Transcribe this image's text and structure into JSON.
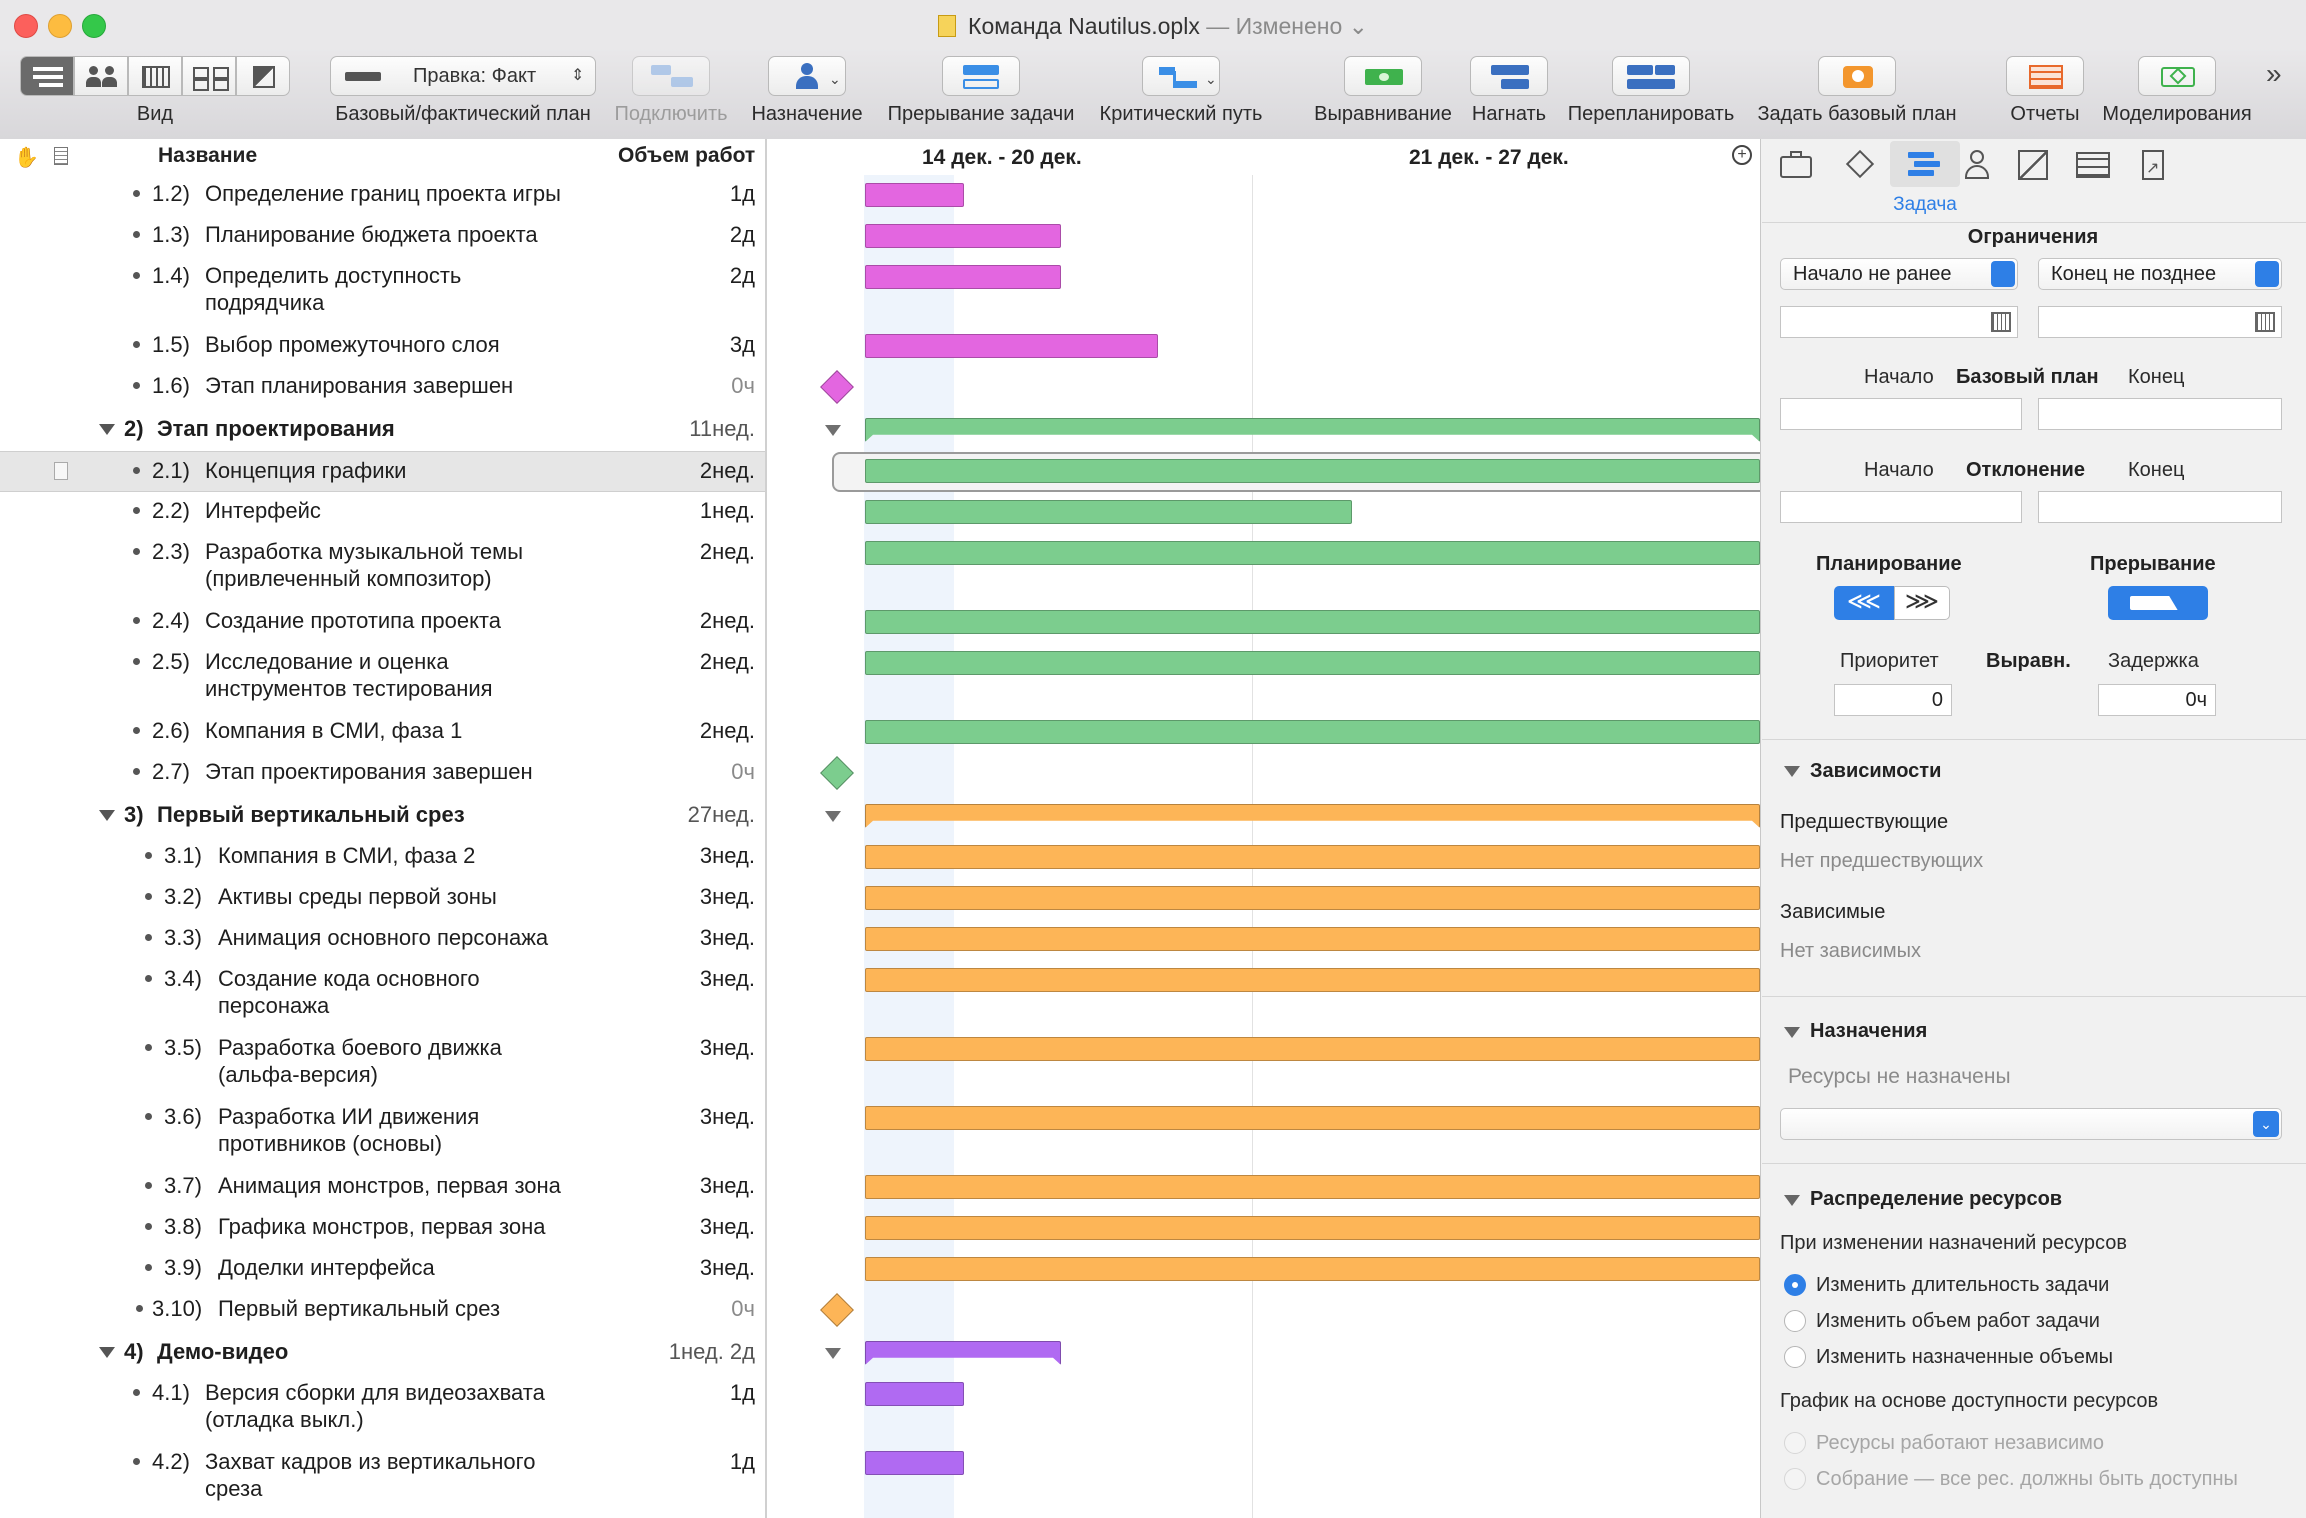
{
  "window": {
    "title": "Команда Nautilus.oplx",
    "status": "Изменено"
  },
  "toolbar": {
    "view_label": "Вид",
    "baseline_popup_value": "Правка: Факт",
    "baseline_label": "Базовый/фактический план",
    "connect_label": "Подключить",
    "assign_label": "Назначение",
    "split_label": "Прерывание задачи",
    "critical_label": "Критический путь",
    "level_label": "Выравнивание",
    "catchup_label": "Нагнать",
    "reschedule_label": "Перепланировать",
    "set_baseline_label": "Задать базовый план",
    "reports_label": "Отчеты",
    "simulation_label": "Моделирования",
    "overflow": "»"
  },
  "colors": {
    "group1": "#e366e0",
    "group2": "#7ccd8e",
    "group3": "#fdb557",
    "group4": "#b06af2",
    "accent": "#2e7fe6"
  },
  "outline": {
    "col_name": "Название",
    "col_effort": "Объем работ",
    "rows": [
      {
        "num": "1.2)",
        "name": "Определение границ проекта игры",
        "effort": "1д",
        "kind": "task"
      },
      {
        "num": "1.3)",
        "name": "Планирование бюджета проекта",
        "effort": "2д",
        "kind": "task"
      },
      {
        "num": "1.4)",
        "name": "Определить доступность",
        "name2": "подрядчика",
        "effort": "2д",
        "kind": "task"
      },
      {
        "num": "1.5)",
        "name": "Выбор промежуточного слоя",
        "effort": "3д",
        "kind": "task"
      },
      {
        "num": "1.6)",
        "name": "Этап планирования завершен",
        "effort": "0ч",
        "kind": "milestone"
      },
      {
        "num": "2)",
        "name": "Этап проектирования",
        "effort": "11нед.",
        "kind": "group"
      },
      {
        "num": "2.1)",
        "name": "Концепция графики",
        "effort": "2нед.",
        "kind": "task"
      },
      {
        "num": "2.2)",
        "name": "Интерфейс",
        "effort": "1нед.",
        "kind": "task"
      },
      {
        "num": "2.3)",
        "name": "Разработка музыкальной темы",
        "name2": "(привлеченный композитор)",
        "effort": "2нед.",
        "kind": "task"
      },
      {
        "num": "2.4)",
        "name": "Создание прототипа проекта",
        "effort": "2нед.",
        "kind": "task"
      },
      {
        "num": "2.5)",
        "name": "Исследование и оценка",
        "name2": "инструментов тестирования",
        "effort": "2нед.",
        "kind": "task"
      },
      {
        "num": "2.6)",
        "name": "Компания в СМИ, фаза 1",
        "effort": "2нед.",
        "kind": "task"
      },
      {
        "num": "2.7)",
        "name": "Этап проектирования завершен",
        "effort": "0ч",
        "kind": "milestone"
      },
      {
        "num": "3)",
        "name": "Первый вертикальный срез",
        "effort": "27нед.",
        "kind": "group"
      },
      {
        "num": "3.1)",
        "name": "Компания в СМИ, фаза 2",
        "effort": "3нед.",
        "kind": "task"
      },
      {
        "num": "3.2)",
        "name": "Активы среды первой зоны",
        "effort": "3нед.",
        "kind": "task"
      },
      {
        "num": "3.3)",
        "name": "Анимация основного персонажа",
        "effort": "3нед.",
        "kind": "task"
      },
      {
        "num": "3.4)",
        "name": "Создание кода основного",
        "name2": "персонажа",
        "effort": "3нед.",
        "kind": "task"
      },
      {
        "num": "3.5)",
        "name": "Разработка боевого движка",
        "name2": "(альфа-версия)",
        "effort": "3нед.",
        "kind": "task"
      },
      {
        "num": "3.6)",
        "name": "Разработка ИИ движения",
        "name2": "противников (основы)",
        "effort": "3нед.",
        "kind": "task"
      },
      {
        "num": "3.7)",
        "name": "Анимация монстров, первая зона",
        "effort": "3нед.",
        "kind": "task"
      },
      {
        "num": "3.8)",
        "name": "Графика монстров, первая зона",
        "effort": "3нед.",
        "kind": "task"
      },
      {
        "num": "3.9)",
        "name": "Доделки интерфейса",
        "effort": "3нед.",
        "kind": "task"
      },
      {
        "num": "3.10)",
        "name": "Первый вертикальный срез",
        "effort": "0ч",
        "kind": "milestone"
      },
      {
        "num": "4)",
        "name": "Демо-видео",
        "effort": "1нед. 2д",
        "kind": "group"
      },
      {
        "num": "4.1)",
        "name": "Версия сборки для видеозахвата",
        "name2": "(отладка выкл.)",
        "effort": "1д",
        "kind": "task"
      },
      {
        "num": "4.2)",
        "name": "Захват кадров из вертикального",
        "name2": "среза",
        "effort": "1д",
        "kind": "task"
      }
    ]
  },
  "gantt": {
    "week1": "14 дек. - 20 дек.",
    "week2": "21 дек. - 27 дек."
  },
  "inspector": {
    "tab_label": "Задача",
    "constraints_title": "Ограничения",
    "start_constraint": "Начало не ранее",
    "end_constraint": "Конец не позднее",
    "start": "Начало",
    "baseline": "Базовый план",
    "end": "Конец",
    "variance": "Отклонение",
    "scheduling": "Планирование",
    "splitting": "Прерывание",
    "priority": "Приоритет",
    "leveling": "Выравн.",
    "delay": "Задержка",
    "priority_value": "0",
    "delay_value": "0ч",
    "deps_title": "Зависимости",
    "prereqs": "Предшествующие",
    "no_prereqs": "Нет предшествующих",
    "dependents": "Зависимые",
    "no_dependents": "Нет зависимых",
    "assignments_title": "Назначения",
    "no_resources": "Ресурсы не назначены",
    "allocation_title": "Распределение ресурсов",
    "when_changing": "При изменении назначений ресурсов",
    "opt1": "Изменить длительность задачи",
    "opt2": "Изменить объем работ задачи",
    "opt3": "Изменить назначенные объемы",
    "schedule_by": "График на основе доступности ресурсов",
    "opt4": "Ресурсы работают независимо",
    "opt5": "Собрание — все рес. должны быть доступны"
  }
}
